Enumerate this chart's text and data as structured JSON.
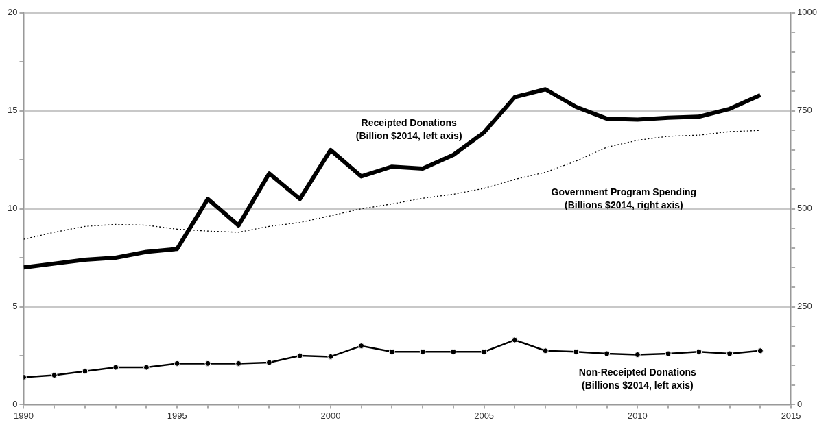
{
  "chart_data": {
    "type": "line",
    "x": [
      1990,
      1991,
      1992,
      1993,
      1994,
      1995,
      1996,
      1997,
      1998,
      1999,
      2000,
      2001,
      2002,
      2003,
      2004,
      2005,
      2006,
      2007,
      2008,
      2009,
      2010,
      2011,
      2012,
      2013,
      2014
    ],
    "series": [
      {
        "name": "Receipted Donations\n(Billion $2014, left axis)",
        "color": "#000000",
        "line_style": "solid",
        "marker": "none",
        "values": [
          7.0,
          7.2,
          7.4,
          7.5,
          7.8,
          7.95,
          10.5,
          9.15,
          11.8,
          10.5,
          13.0,
          11.65,
          12.15,
          12.05,
          12.75,
          13.9,
          15.7,
          16.1,
          15.2,
          14.6,
          14.55,
          14.65,
          14.7,
          15.1,
          15.8
        ]
      },
      {
        "name": "Government Program Spending\n(Billions $2014, right axis)",
        "color": "#000000",
        "line_style": "dotted",
        "marker": "none",
        "axis": "y2",
        "values": [
          422,
          440,
          455,
          460,
          458,
          448,
          443,
          440,
          455,
          465,
          482,
          500,
          512,
          527,
          537,
          552,
          575,
          593,
          622,
          657,
          675,
          685,
          688,
          697,
          700
        ]
      },
      {
        "name": "Non-Receipted Donations\n(Billions $2014, left axis)",
        "color": "#000000",
        "line_style": "solid",
        "marker": "circle",
        "values": [
          1.4,
          1.5,
          1.7,
          1.9,
          1.9,
          2.1,
          2.1,
          2.1,
          2.15,
          2.5,
          2.45,
          3.0,
          2.7,
          2.7,
          2.7,
          2.7,
          3.3,
          2.75,
          2.7,
          2.6,
          2.55,
          2.6,
          2.7,
          2.6,
          2.75
        ]
      }
    ],
    "xlim": [
      1990,
      2015
    ],
    "xticks": [
      1990,
      {
        "value": 1991,
        "label": null
      },
      {
        "value": 1992,
        "label": null
      },
      {
        "value": 1993,
        "label": null
      },
      {
        "value": 1994,
        "label": null
      },
      1995,
      {
        "value": 1996,
        "label": null
      },
      {
        "value": 1997,
        "label": null
      },
      {
        "value": 1998,
        "label": null
      },
      {
        "value": 1999,
        "label": null
      },
      2000,
      {
        "value": 2001,
        "label": null
      },
      {
        "value": 2002,
        "label": null
      },
      {
        "value": 2003,
        "label": null
      },
      {
        "value": 2004,
        "label": null
      },
      2005,
      {
        "value": 2006,
        "label": null
      },
      {
        "value": 2007,
        "label": null
      },
      {
        "value": 2008,
        "label": null
      },
      {
        "value": 2009,
        "label": null
      },
      2010,
      {
        "value": 2011,
        "label": null
      },
      {
        "value": 2012,
        "label": null
      },
      {
        "value": 2013,
        "label": null
      },
      {
        "value": 2014,
        "label": null
      },
      2015
    ],
    "ylim": [
      0,
      20
    ],
    "yticks": [
      0,
      {
        "value": 2.5,
        "label": null
      },
      5,
      {
        "value": 7.5,
        "label": null
      },
      10,
      {
        "value": 12.5,
        "label": null
      },
      15,
      {
        "value": 17.5,
        "label": null
      },
      20
    ],
    "y2lim": [
      0,
      1000
    ],
    "y2ticks": [
      0,
      {
        "value": 50,
        "label": null
      },
      {
        "value": 100,
        "label": null
      },
      {
        "value": 150,
        "label": null
      },
      {
        "value": 200,
        "label": null
      },
      250,
      {
        "value": 300,
        "label": null
      },
      {
        "value": 350,
        "label": null
      },
      {
        "value": 400,
        "label": null
      },
      {
        "value": 450,
        "label": null
      },
      500,
      {
        "value": 550,
        "label": null
      },
      {
        "value": 600,
        "label": null
      },
      {
        "value": 650,
        "label": null
      },
      {
        "value": 700,
        "label": null
      },
      750,
      {
        "value": 800,
        "label": null
      },
      {
        "value": 850,
        "label": null
      },
      {
        "value": 900,
        "label": null
      },
      {
        "value": 950,
        "label": null
      },
      1000
    ],
    "grid": "y",
    "legend": false
  }
}
